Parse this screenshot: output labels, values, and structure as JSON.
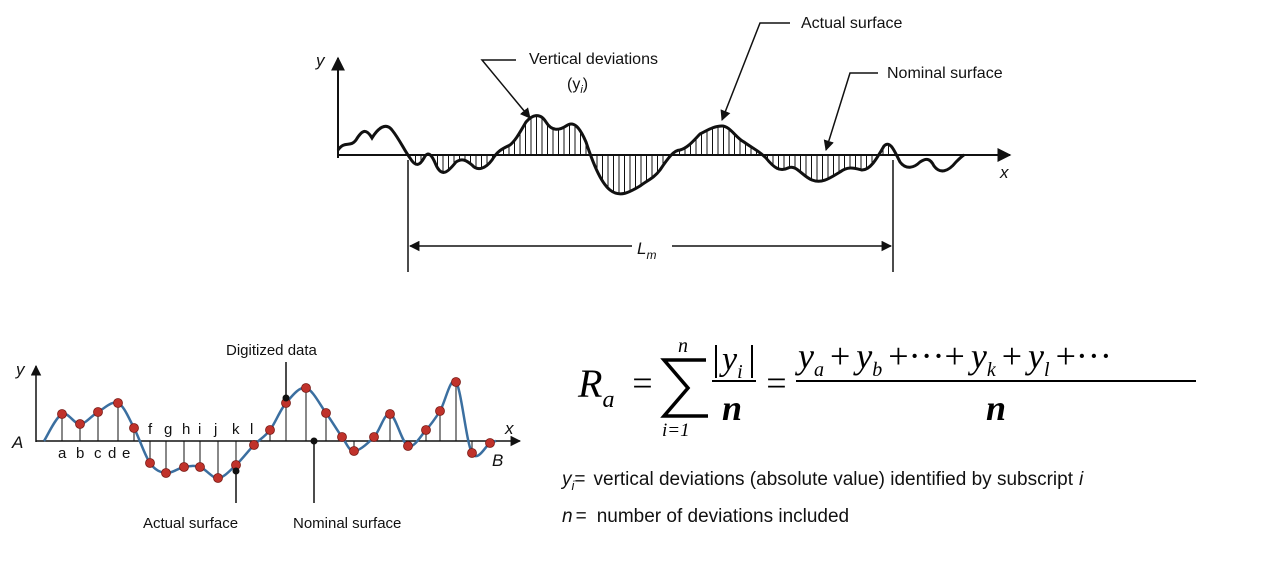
{
  "top_diagram": {
    "y_axis": "y",
    "x_axis": "x",
    "annotation_vertical": "Vertical deviations",
    "annotation_vertical_sub": "(y",
    "annotation_vertical_sub_i": "i",
    "annotation_vertical_close": ")",
    "annotation_actual": "Actual surface",
    "annotation_nominal": "Nominal surface",
    "length_label": "L",
    "length_sub": "m"
  },
  "bottom_diagram": {
    "y_axis": "y",
    "x_axis": "x",
    "point_a": "A",
    "point_b": "B",
    "digitized_label": "Digitized data",
    "actual_label": "Actual surface",
    "nominal_label": "Nominal surface",
    "point_letters": [
      "a",
      "b",
      "c",
      "d",
      "e",
      "f",
      "g",
      "h",
      "i",
      "j",
      "k",
      "l"
    ]
  },
  "formula": {
    "lhs": "R",
    "lhs_sub": "a",
    "equals1": "=",
    "sum_top": "n",
    "sum_bottom": "i=1",
    "abs_num": "y",
    "abs_num_sub": "i",
    "den": "n",
    "equals2": "=",
    "rhs_num": "y",
    "rhs_sub_a": "a",
    "rhs_plus1": "+",
    "rhs_sub_b": "b",
    "rhs_dots1": "+···+",
    "rhs_sub_k": "k",
    "rhs_plus2": "+",
    "rhs_sub_l": "l",
    "rhs_tail": "+···",
    "rhs_den": "n"
  },
  "definitions": [
    {
      "symbol": "y",
      "symbol_sub": "i",
      "eq": "=",
      "text": "vertical deviations (absolute value) identified by subscript",
      "trail": "i"
    },
    {
      "symbol": "n",
      "eq": "=",
      "text": "number of deviations included"
    }
  ],
  "colors": {
    "curve_bottom": "#3b6fa0",
    "dots": "#c0322b",
    "ink": "#111111"
  }
}
